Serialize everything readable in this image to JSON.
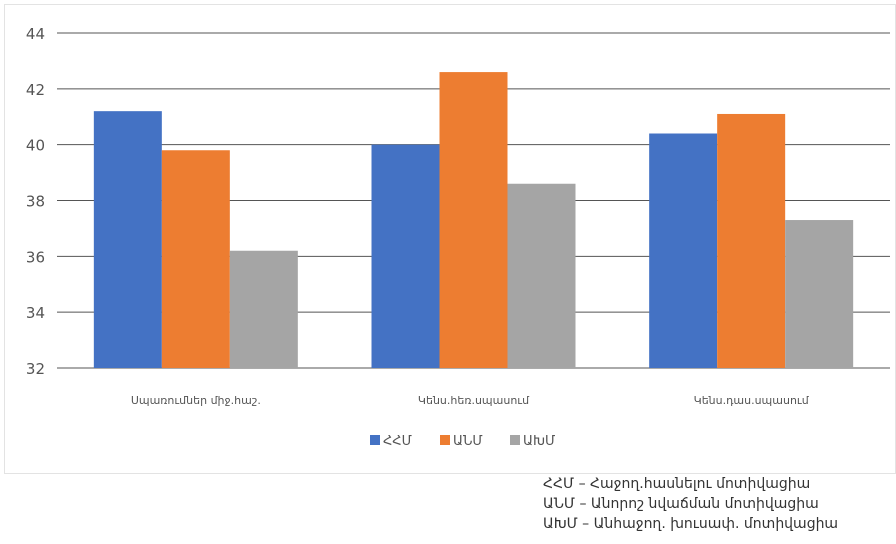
{
  "chart_data": {
    "type": "bar",
    "title": "",
    "xlabel": "",
    "ylabel": "",
    "categories": [
      "Սպառումներ միջ.հաշ.",
      "Կենս.հեռ.սպասում",
      "Կենս.դաս.սպասում"
    ],
    "series": [
      {
        "name": "ՀՀՄ",
        "values": [
          41.2,
          40.0,
          40.4
        ],
        "color": "#4472c4"
      },
      {
        "name": "ԱՆՄ",
        "values": [
          39.8,
          42.6,
          41.1
        ],
        "color": "#ed7d31"
      },
      {
        "name": "ԱԽՄ",
        "values": [
          36.2,
          38.6,
          37.3
        ],
        "color": "#a5a5a5"
      }
    ],
    "ylim": [
      32,
      44
    ],
    "yticks": [
      32,
      34,
      36,
      38,
      40,
      42,
      44
    ],
    "grid": true,
    "legend": "bottom"
  },
  "notes": [
    "ՀՀՄ – Հաջող.հասնելու մոտիվացիա",
    "ԱՆՄ – Անորոշ նվաճման մոտիվացիա",
    "ԱԽՄ – Անհաջող. խուսափ. մոտիվացիա"
  ]
}
